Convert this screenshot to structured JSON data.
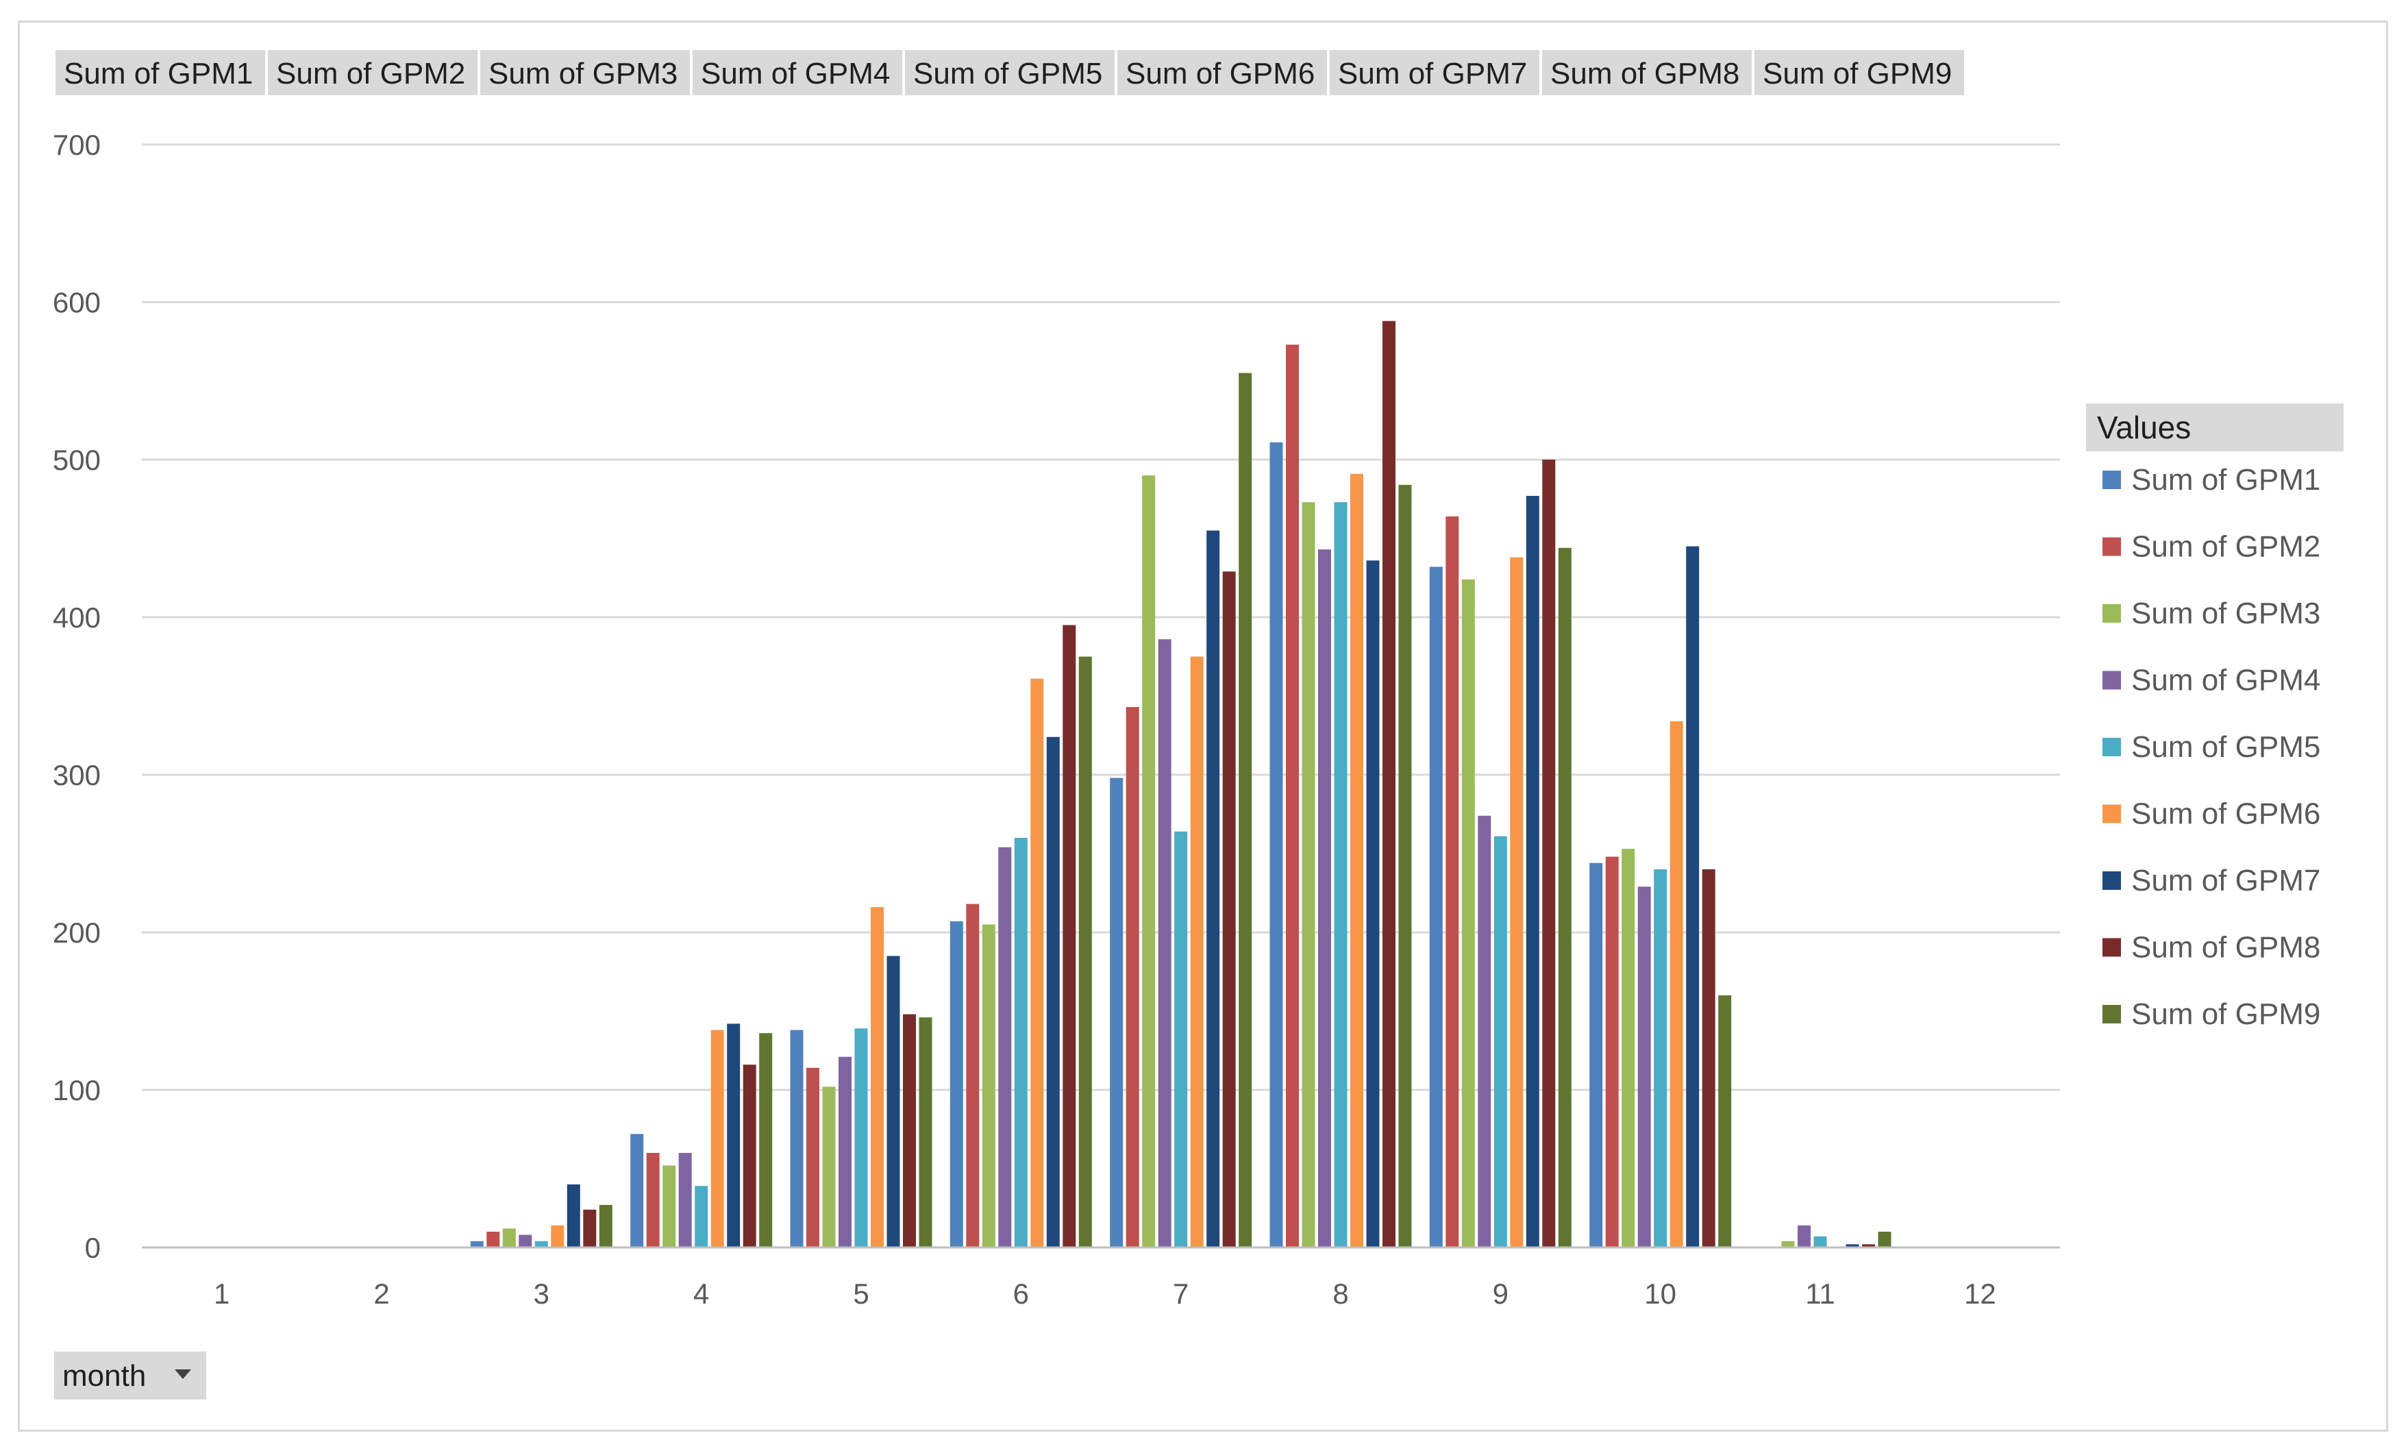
{
  "field_buttons": [
    "Sum of GPM1",
    "Sum of GPM2",
    "Sum of GPM3",
    "Sum of GPM4",
    "Sum of GPM5",
    "Sum of GPM6",
    "Sum of GPM7",
    "Sum of GPM8",
    "Sum of GPM9"
  ],
  "axis_field_button": {
    "label": "month",
    "icon": "dropdown-arrow-icon"
  },
  "legend_title": "Values",
  "chart_data": {
    "type": "bar",
    "title": "",
    "xlabel": "month",
    "ylabel": "",
    "categories": [
      "1",
      "2",
      "3",
      "4",
      "5",
      "6",
      "7",
      "8",
      "9",
      "10",
      "11",
      "12"
    ],
    "ylim": [
      0,
      700
    ],
    "yticks": [
      0,
      100,
      200,
      300,
      400,
      500,
      600,
      700
    ],
    "grid": true,
    "legend_position": "right",
    "series": [
      {
        "name": "Sum of GPM1",
        "color": "#4f81bd",
        "values": [
          0,
          0,
          4,
          72,
          138,
          207,
          298,
          511,
          432,
          244,
          0,
          0
        ]
      },
      {
        "name": "Sum of GPM2",
        "color": "#c0504d",
        "values": [
          0,
          0,
          10,
          60,
          114,
          218,
          343,
          573,
          464,
          248,
          0,
          0
        ]
      },
      {
        "name": "Sum of GPM3",
        "color": "#9bbb59",
        "values": [
          0,
          0,
          12,
          52,
          102,
          205,
          490,
          473,
          424,
          253,
          4,
          0
        ]
      },
      {
        "name": "Sum of GPM4",
        "color": "#8064a2",
        "values": [
          0,
          0,
          8,
          60,
          121,
          254,
          386,
          443,
          274,
          229,
          14,
          0
        ]
      },
      {
        "name": "Sum of GPM5",
        "color": "#4bacc6",
        "values": [
          0,
          0,
          4,
          39,
          139,
          260,
          264,
          473,
          261,
          240,
          7,
          0
        ]
      },
      {
        "name": "Sum of GPM6",
        "color": "#f79646",
        "values": [
          0,
          0,
          14,
          138,
          216,
          361,
          375,
          491,
          438,
          334,
          0,
          0
        ]
      },
      {
        "name": "Sum of GPM7",
        "color": "#1f497d",
        "values": [
          0,
          0,
          40,
          142,
          185,
          324,
          455,
          436,
          477,
          445,
          2,
          0
        ]
      },
      {
        "name": "Sum of GPM8",
        "color": "#772c2a",
        "values": [
          0,
          0,
          24,
          116,
          148,
          395,
          429,
          588,
          500,
          240,
          2,
          0
        ]
      },
      {
        "name": "Sum of GPM9",
        "color": "#5f7530",
        "values": [
          0,
          0,
          27,
          136,
          146,
          375,
          555,
          484,
          444,
          160,
          10,
          0
        ]
      }
    ]
  }
}
